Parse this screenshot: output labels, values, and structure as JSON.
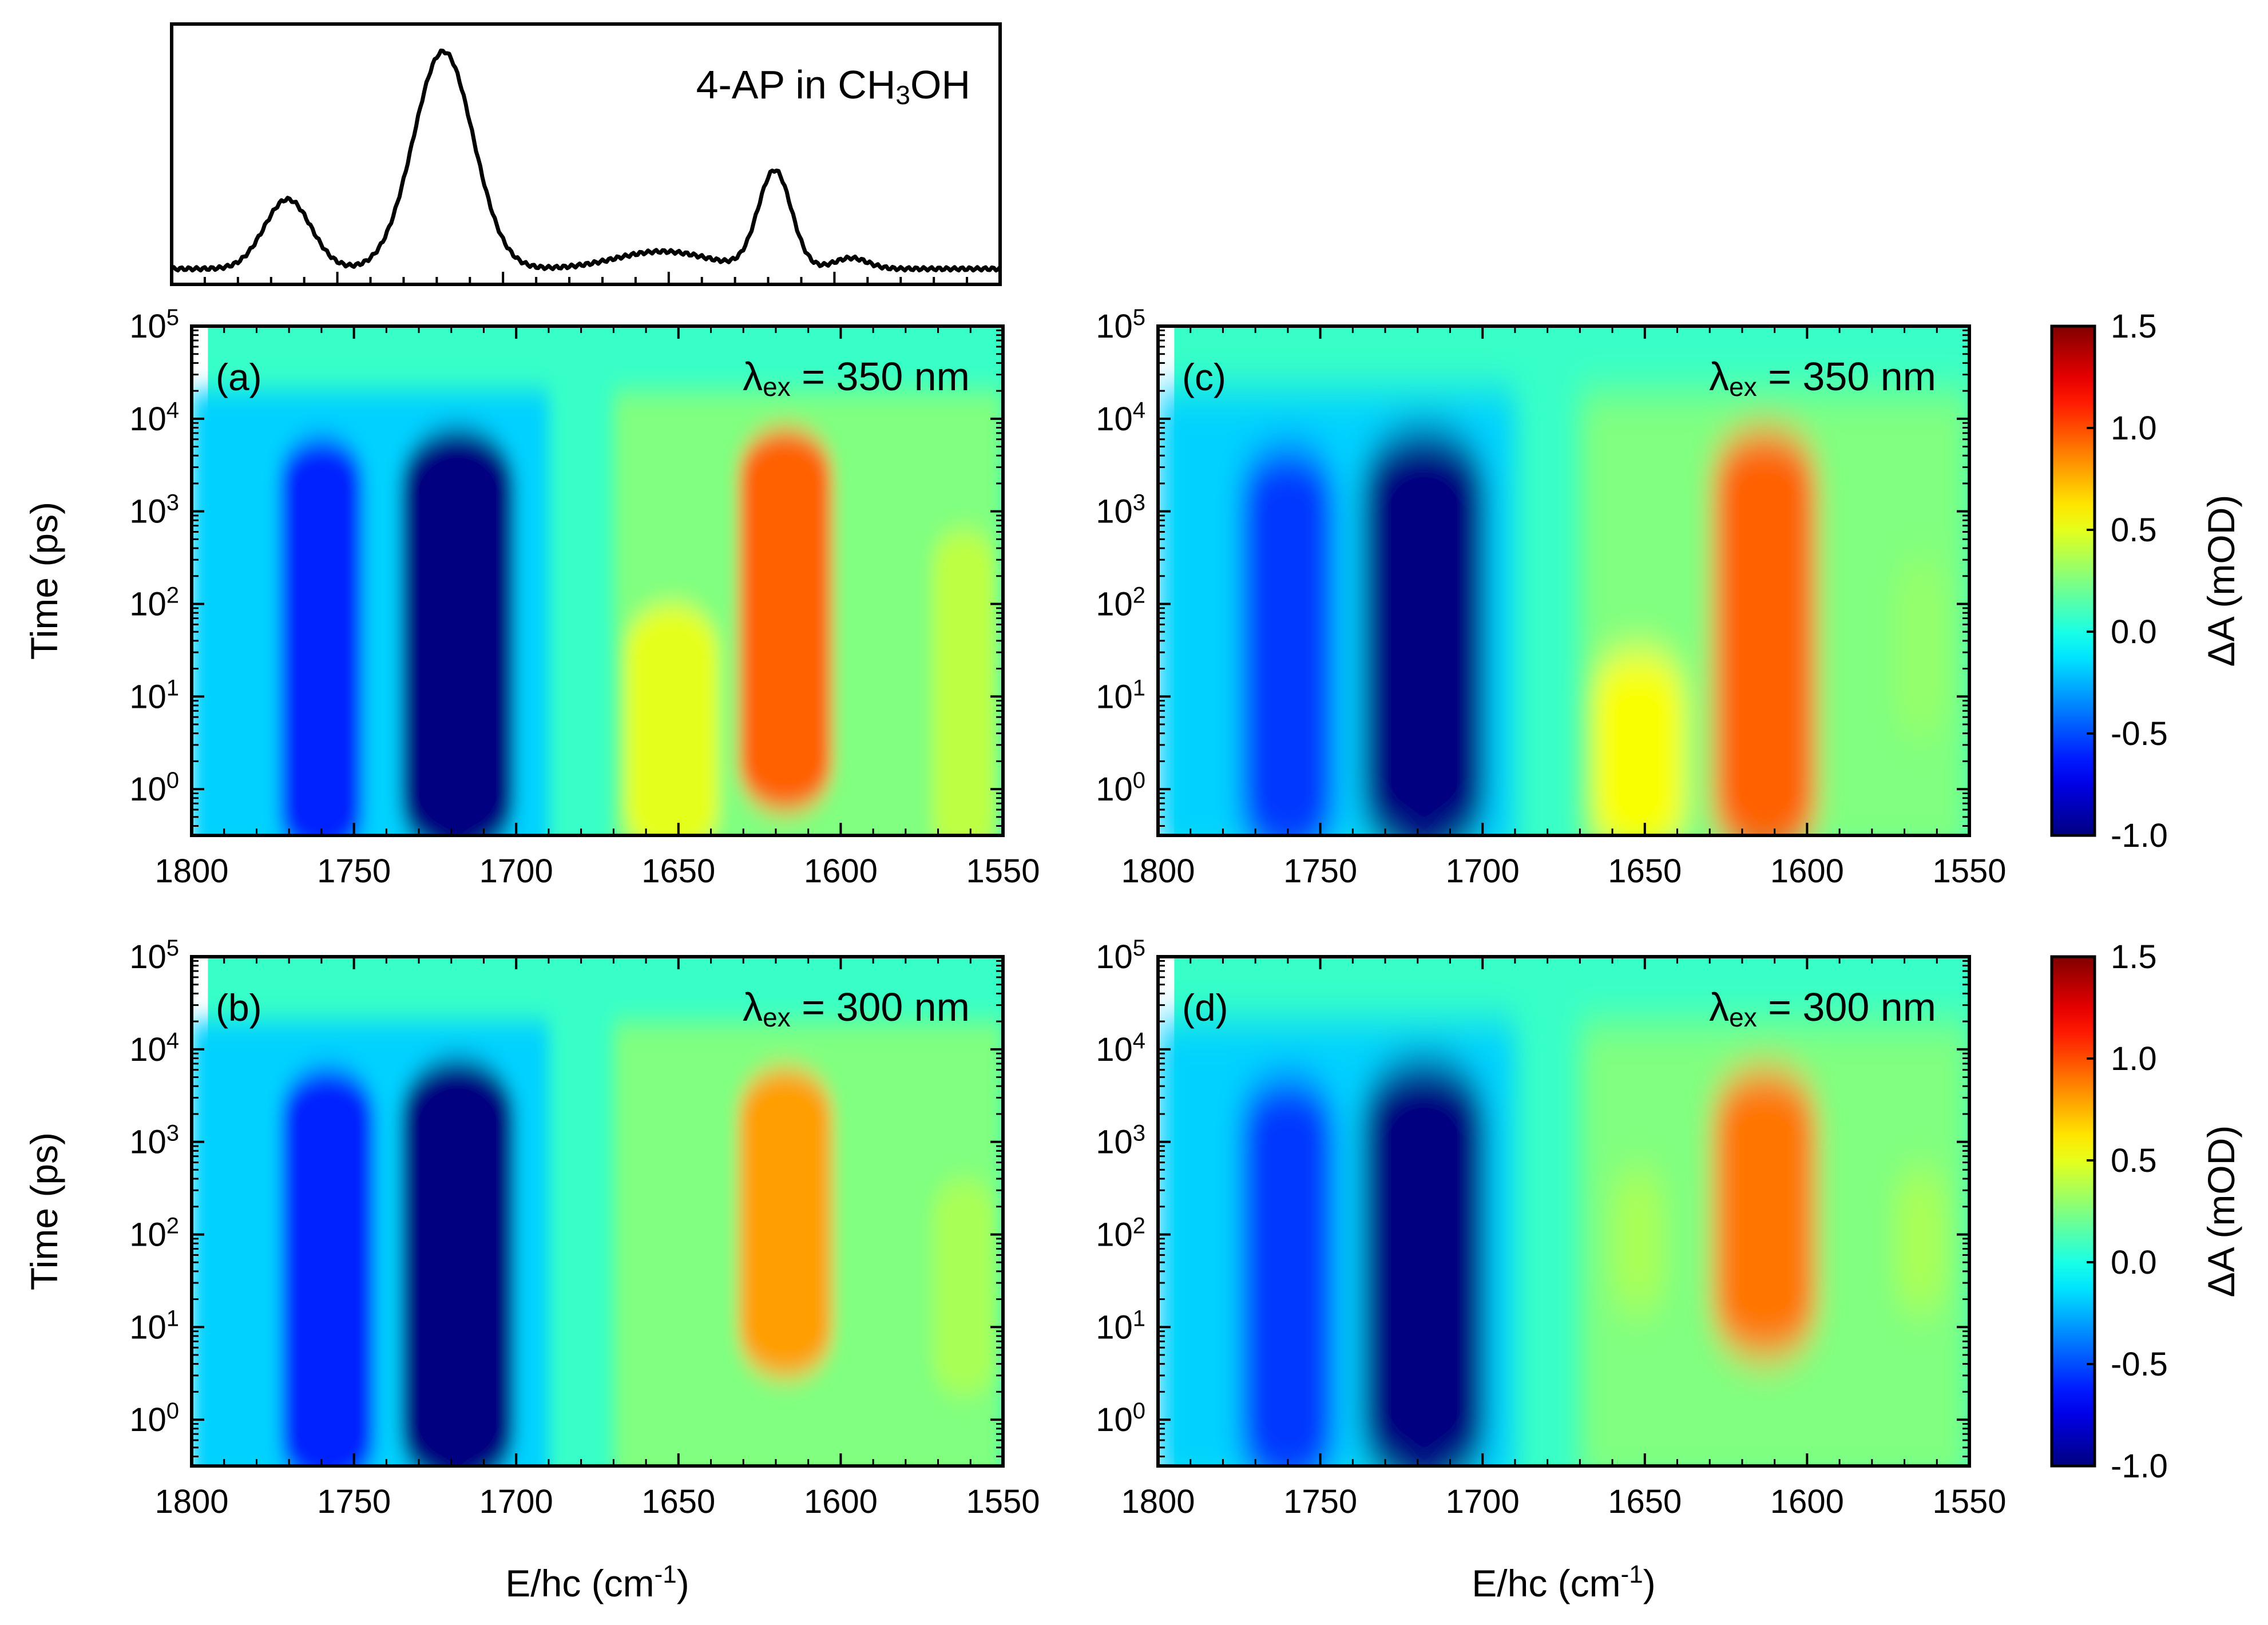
{
  "figure": {
    "x_ticks": [
      "1800",
      "1750",
      "1700",
      "1650",
      "1600",
      "1550"
    ],
    "y_ticks": [
      {
        "base": "10",
        "exp": "5"
      },
      {
        "base": "10",
        "exp": "4"
      },
      {
        "base": "10",
        "exp": "3"
      },
      {
        "base": "10",
        "exp": "2"
      },
      {
        "base": "10",
        "exp": "1"
      },
      {
        "base": "10",
        "exp": "0"
      }
    ],
    "colorbar_ticks": [
      "1.5",
      "1.0",
      "0.5",
      "0.0",
      "-0.5",
      "-1.0"
    ],
    "y_label": "Time (ps)",
    "x_label": {
      "main": "E/hc (cm",
      "sup": "-1",
      "end": ")"
    },
    "colorbar_label": "ΔA (mOD)"
  },
  "chart_data": [
    {
      "type": "line",
      "title": "4-AP in CH3OH",
      "title_parts": {
        "prefix": "4-AP in CH",
        "sub": "3",
        "suffix": "OH"
      },
      "xlim": [
        1800,
        1550
      ],
      "peaks": [
        {
          "x": 1765,
          "height": 0.32
        },
        {
          "x": 1718,
          "height": 1.0
        },
        {
          "x": 1652,
          "height": 0.08
        },
        {
          "x": 1618,
          "height": 0.45
        },
        {
          "x": 1595,
          "height": 0.05
        }
      ],
      "baseline": 0.04
    },
    {
      "type": "heatmap",
      "panel": "(a)",
      "label_parts": {
        "symbol": "λ",
        "sub": "ex",
        "rest": " = 350 nm"
      },
      "xlabel": "E/hc (cm-1)",
      "ylabel": "Time (ps)",
      "xlim": [
        1800,
        1550
      ],
      "ylim_log10": [
        -0.5,
        5
      ],
      "clim": [
        -1.0,
        1.5
      ],
      "features": [
        {
          "center": 1718,
          "width": 11,
          "amplitude": -1.0,
          "tmin_log": -0.5,
          "tmax_log": 3.9
        },
        {
          "center": 1760,
          "width": 8,
          "amplitude": -0.6,
          "tmin_log": -0.5,
          "tmax_log": 3.8
        },
        {
          "center": 1617,
          "width": 9,
          "amplitude": 0.95,
          "tmin_log": 0.0,
          "tmax_log": 3.9
        },
        {
          "center": 1652,
          "width": 9,
          "amplitude": 0.5,
          "tmin_log": -0.5,
          "tmax_log": 2.0
        },
        {
          "center": 1562,
          "width": 6,
          "amplitude": 0.4,
          "tmin_log": -0.5,
          "tmax_log": 2.8
        }
      ]
    },
    {
      "type": "heatmap",
      "panel": "(b)",
      "label_parts": {
        "symbol": "λ",
        "sub": "ex",
        "rest": " = 300 nm"
      },
      "xlabel": "E/hc (cm-1)",
      "ylabel": "Time (ps)",
      "xlim": [
        1800,
        1550
      ],
      "ylim_log10": [
        -0.5,
        5
      ],
      "clim": [
        -1.0,
        1.5
      ],
      "features": [
        {
          "center": 1718,
          "width": 11,
          "amplitude": -1.0,
          "tmin_log": -0.5,
          "tmax_log": 3.9
        },
        {
          "center": 1758,
          "width": 9,
          "amplitude": -0.6,
          "tmin_log": -0.5,
          "tmax_log": 3.8
        },
        {
          "center": 1617,
          "width": 9,
          "amplitude": 0.8,
          "tmin_log": 0.7,
          "tmax_log": 3.8
        },
        {
          "center": 1562,
          "width": 6,
          "amplitude": 0.35,
          "tmin_log": 0.5,
          "tmax_log": 2.6
        }
      ]
    },
    {
      "type": "heatmap",
      "panel": "(c)",
      "label_parts": {
        "symbol": "λ",
        "sub": "ex",
        "rest": " = 350 nm"
      },
      "xlabel": "E/hc (cm-1)",
      "ylabel": "Time (ps)",
      "xlim": [
        1800,
        1550
      ],
      "ylim_log10": [
        -0.5,
        5
      ],
      "clim": [
        -1.0,
        1.5
      ],
      "features": [
        {
          "center": 1718,
          "width": 12,
          "amplitude": -1.0,
          "tmin_log": -0.5,
          "tmax_log": 3.9
        },
        {
          "center": 1760,
          "width": 9,
          "amplitude": -0.55,
          "tmin_log": -0.5,
          "tmax_log": 3.7
        },
        {
          "center": 1613,
          "width": 10,
          "amplitude": 0.95,
          "tmin_log": -0.5,
          "tmax_log": 3.9
        },
        {
          "center": 1652,
          "width": 9,
          "amplitude": 0.55,
          "tmin_log": -0.5,
          "tmax_log": 1.5
        },
        {
          "center": 1565,
          "width": 5,
          "amplitude": 0.3,
          "tmin_log": 0.8,
          "tmax_log": 2.5
        }
      ]
    },
    {
      "type": "heatmap",
      "panel": "(d)",
      "label_parts": {
        "symbol": "λ",
        "sub": "ex",
        "rest": " = 300 nm"
      },
      "xlabel": "E/hc (cm-1)",
      "ylabel": "Time (ps)",
      "xlim": [
        1800,
        1550
      ],
      "ylim_log10": [
        -0.5,
        5
      ],
      "clim": [
        -1.0,
        1.5
      ],
      "features": [
        {
          "center": 1718,
          "width": 12,
          "amplitude": -1.0,
          "tmin_log": -0.5,
          "tmax_log": 3.9
        },
        {
          "center": 1760,
          "width": 9,
          "amplitude": -0.55,
          "tmin_log": -0.5,
          "tmax_log": 3.7
        },
        {
          "center": 1613,
          "width": 10,
          "amplitude": 0.9,
          "tmin_log": 0.9,
          "tmax_log": 3.8
        },
        {
          "center": 1652,
          "width": 5,
          "amplitude": 0.35,
          "tmin_log": 1.4,
          "tmax_log": 2.7
        },
        {
          "center": 1565,
          "width": 5,
          "amplitude": 0.35,
          "tmin_log": 1.4,
          "tmax_log": 2.7
        }
      ]
    }
  ]
}
